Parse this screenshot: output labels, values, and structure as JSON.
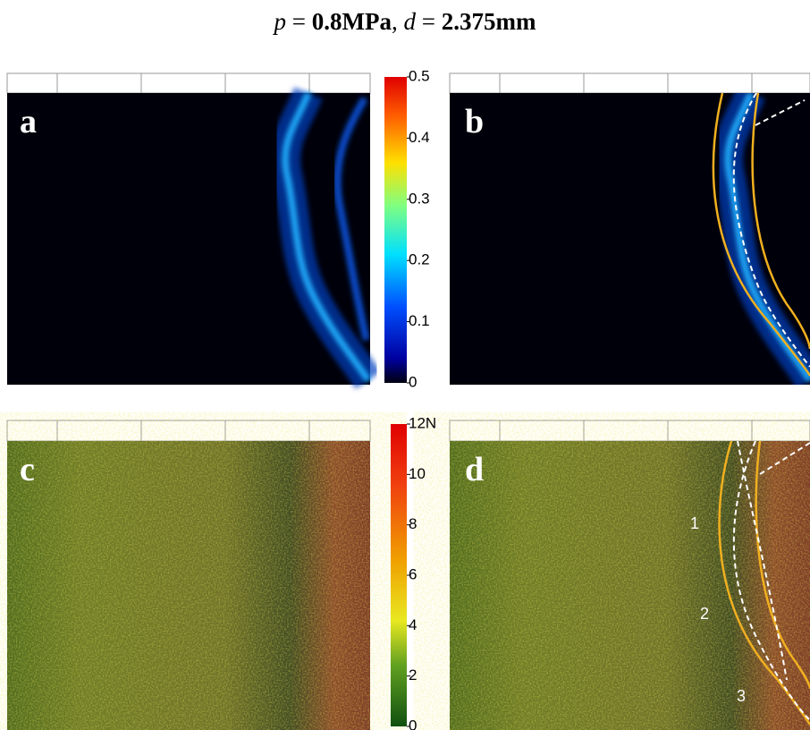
{
  "title": {
    "parts": [
      "p",
      " = ",
      "0.8MPa",
      ", ",
      "d",
      " = ",
      "2.375mm"
    ]
  },
  "panels": {
    "a": "a",
    "b": "b",
    "c": "c",
    "d": "d"
  },
  "colorbar_top": {
    "lim": [
      0,
      0.5
    ],
    "ticks": [
      0,
      0.1,
      0.2,
      0.3,
      0.4,
      0.5
    ]
  },
  "colorbar_bottom": {
    "lim": [
      0,
      12
    ],
    "ticks": [
      0,
      2,
      4,
      6,
      8,
      10,
      {
        "value": 12,
        "label": "12N"
      }
    ]
  },
  "annotations": [
    "1",
    "2",
    "3"
  ]
}
